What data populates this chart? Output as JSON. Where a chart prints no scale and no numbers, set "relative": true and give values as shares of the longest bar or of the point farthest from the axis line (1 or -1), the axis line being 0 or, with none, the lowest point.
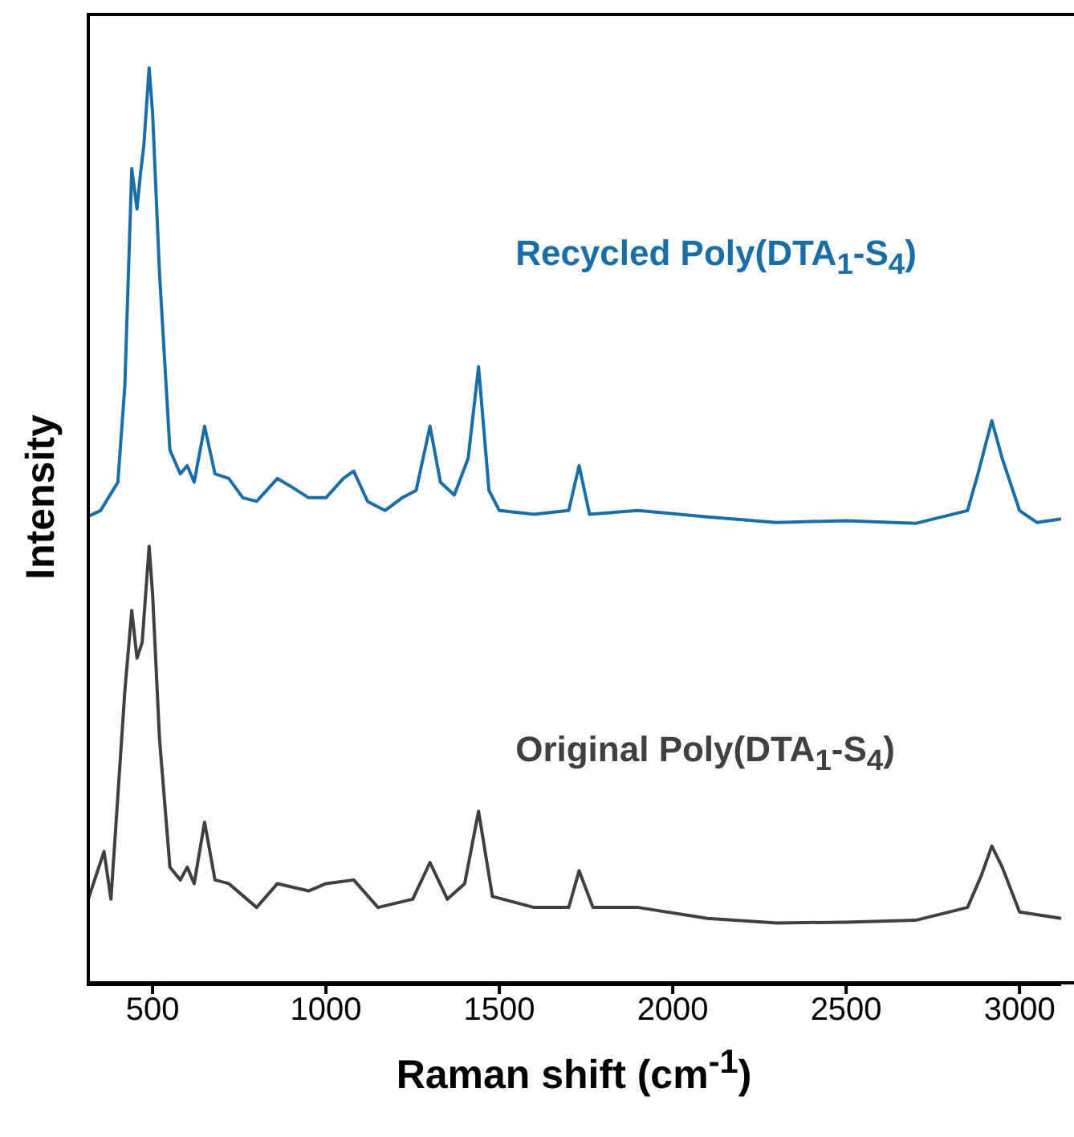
{
  "chart_data": {
    "type": "line",
    "relative": true,
    "xlabel": "Raman shift (cm$^{-1}$)",
    "ylabel": "Intensity",
    "xlim": [
      310,
      3120
    ],
    "xticks": [
      500,
      1000,
      1500,
      2000,
      2500,
      3000
    ],
    "grid": false,
    "legend": false,
    "marker": "none",
    "line_style": "solid",
    "series": [
      {
        "name": "Recycled Poly(DTA$_{1}$-S$_{4}$)",
        "color": "#1a6ea8",
        "x": [
          310,
          350,
          400,
          420,
          440,
          455,
          465,
          475,
          490,
          500,
          520,
          550,
          580,
          600,
          620,
          650,
          680,
          720,
          760,
          800,
          860,
          900,
          950,
          1000,
          1050,
          1080,
          1120,
          1170,
          1220,
          1260,
          1300,
          1330,
          1370,
          1410,
          1440,
          1470,
          1500,
          1600,
          1700,
          1730,
          1760,
          1900,
          2100,
          2300,
          2500,
          2700,
          2850,
          2880,
          2920,
          2950,
          3000,
          3050,
          3120
        ],
        "values": [
          0.51,
          0.517,
          0.548,
          0.653,
          0.89,
          0.846,
          0.884,
          0.916,
          1,
          0.951,
          0.776,
          0.583,
          0.557,
          0.566,
          0.548,
          0.609,
          0.557,
          0.552,
          0.531,
          0.527,
          0.552,
          0.543,
          0.531,
          0.531,
          0.552,
          0.56,
          0.527,
          0.517,
          0.531,
          0.539,
          0.609,
          0.548,
          0.534,
          0.574,
          0.674,
          0.539,
          0.517,
          0.513,
          0.517,
          0.566,
          0.513,
          0.517,
          0.51,
          0.504,
          0.506,
          0.503,
          0.517,
          0.557,
          0.615,
          0.574,
          0.517,
          0.504,
          0.508
        ]
      },
      {
        "name": "Original Poly(DTA$_{1}$-S$_{4}$)",
        "color": "#404040",
        "x": [
          310,
          360,
          380,
          420,
          440,
          455,
          470,
          490,
          500,
          520,
          550,
          580,
          600,
          620,
          650,
          680,
          720,
          800,
          860,
          950,
          1000,
          1080,
          1150,
          1250,
          1300,
          1350,
          1400,
          1440,
          1480,
          1600,
          1700,
          1730,
          1770,
          1900,
          2100,
          2300,
          2500,
          2700,
          2850,
          2890,
          2920,
          2950,
          3000,
          3120
        ],
        "values": [
          0.088,
          0.145,
          0.093,
          0.32,
          0.408,
          0.356,
          0.373,
          0.478,
          0.426,
          0.268,
          0.128,
          0.114,
          0.128,
          0.11,
          0.177,
          0.114,
          0.11,
          0.084,
          0.11,
          0.102,
          0.11,
          0.114,
          0.084,
          0.093,
          0.133,
          0.093,
          0.11,
          0.189,
          0.096,
          0.084,
          0.084,
          0.124,
          0.084,
          0.084,
          0.072,
          0.067,
          0.068,
          0.07,
          0.084,
          0.119,
          0.151,
          0.128,
          0.079,
          0.072
        ]
      }
    ]
  }
}
